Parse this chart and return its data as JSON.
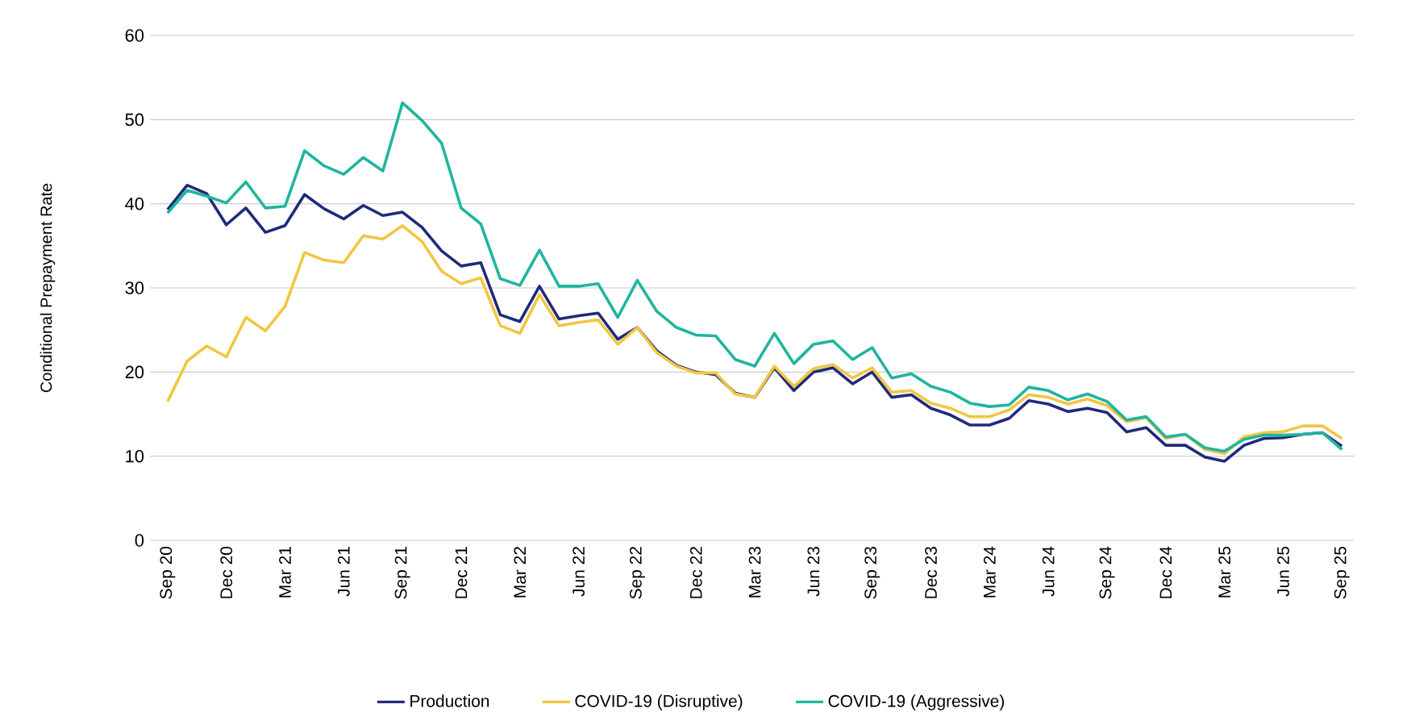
{
  "chart_data": {
    "type": "line",
    "ylabel": "Conditional Prepayment Rate",
    "categories": [
      "Sep 20",
      null,
      null,
      "Dec 20",
      null,
      null,
      "Mar 21",
      null,
      null,
      "Jun 21",
      null,
      null,
      "Sep 21",
      null,
      null,
      "Dec 21",
      null,
      null,
      "Mar 22",
      null,
      null,
      "Jun 22",
      null,
      null,
      "Sep 22",
      null,
      null,
      "Dec 22",
      null,
      null,
      "Mar 23",
      null,
      null,
      "Jun 23",
      null,
      null,
      "Sep 23",
      null,
      null,
      "Dec 23",
      null,
      null,
      "Mar 24",
      null,
      null,
      "Jun 24",
      null,
      null,
      "Sep 24",
      null,
      null,
      "Dec 24",
      null,
      null,
      "Mar 25",
      null,
      null,
      "Jun 25",
      null,
      null,
      "Sep 25"
    ],
    "series": [
      {
        "name": "Production",
        "color": "#1f2a7a",
        "values": [
          39.3,
          42.2,
          41.2,
          37.5,
          39.5,
          36.6,
          37.4,
          41.1,
          39.4,
          38.2,
          39.8,
          38.6,
          39.0,
          37.2,
          34.4,
          32.6,
          33.0,
          26.8,
          26.0,
          30.2,
          26.3,
          26.7,
          27.0,
          23.9,
          25.3,
          22.5,
          20.8,
          20.0,
          19.7,
          17.5,
          17.0,
          20.5,
          17.8,
          20.0,
          20.5,
          18.6,
          20.0,
          17.0,
          17.3,
          15.7,
          14.9,
          13.7,
          13.7,
          14.5,
          16.6,
          16.2,
          15.3,
          15.7,
          15.2,
          12.9,
          13.4,
          11.3,
          11.3,
          9.9,
          9.4,
          11.3,
          12.1,
          12.2,
          12.6,
          12.8,
          11.2
        ]
      },
      {
        "name": "COVID-19 (Disruptive)",
        "color": "#f2c641",
        "values": [
          16.5,
          21.3,
          23.1,
          21.8,
          26.5,
          24.9,
          27.8,
          34.2,
          33.3,
          33.0,
          36.2,
          35.8,
          37.4,
          35.5,
          32.0,
          30.5,
          31.2,
          25.5,
          24.6,
          29.2,
          25.5,
          25.9,
          26.2,
          23.3,
          25.3,
          22.3,
          20.7,
          19.9,
          19.9,
          17.4,
          17.0,
          20.7,
          18.3,
          20.4,
          20.9,
          19.3,
          20.5,
          17.6,
          17.8,
          16.3,
          15.7,
          14.7,
          14.7,
          15.5,
          17.3,
          17.0,
          16.2,
          16.8,
          16.0,
          14.1,
          14.6,
          12.1,
          12.6,
          10.8,
          10.3,
          12.3,
          12.8,
          12.9,
          13.6,
          13.6,
          12.1
        ]
      },
      {
        "name": "COVID-19 (Aggressive)",
        "color": "#1fb5a0",
        "values": [
          38.9,
          41.6,
          40.9,
          40.1,
          42.6,
          39.5,
          39.7,
          46.3,
          44.5,
          43.5,
          45.5,
          43.9,
          52.0,
          49.9,
          47.2,
          39.5,
          37.6,
          31.1,
          30.3,
          34.5,
          30.2,
          30.2,
          30.5,
          26.5,
          30.9,
          27.2,
          25.3,
          24.4,
          24.3,
          21.5,
          20.7,
          24.6,
          21.0,
          23.3,
          23.7,
          21.5,
          22.9,
          19.3,
          19.8,
          18.3,
          17.6,
          16.3,
          15.9,
          16.1,
          18.2,
          17.8,
          16.7,
          17.4,
          16.5,
          14.3,
          14.7,
          12.3,
          12.6,
          11.0,
          10.6,
          12.0,
          12.5,
          12.5,
          12.6,
          12.8,
          10.8
        ]
      }
    ],
    "ylim": [
      0,
      60
    ],
    "yticks": [
      0,
      10,
      20,
      30,
      40,
      50,
      60
    ],
    "grid": "y",
    "legend": "bottom",
    "line_style": "solid"
  }
}
